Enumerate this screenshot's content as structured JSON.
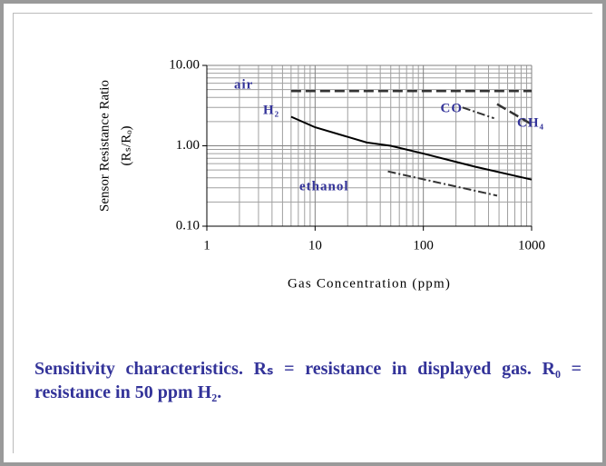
{
  "chart_data": {
    "type": "line",
    "xlabel": "Gas Concentration (ppm)",
    "ylabel": [
      "Sensor Resistance Ratio",
      "(Rₛ/Rₒ)"
    ],
    "log_x": true,
    "log_y": true,
    "grid": true,
    "xlim": [
      1,
      1000
    ],
    "xticks": [
      1,
      10,
      100,
      1000
    ],
    "ylim": [
      0.1,
      10
    ],
    "yticks": [
      {
        "value": 0.1,
        "label": "0.10"
      },
      {
        "value": 1,
        "label": "1.00"
      },
      {
        "value": 10,
        "label": "10.00"
      }
    ],
    "series": [
      {
        "name": "air",
        "color": "#333333",
        "style": "dashed",
        "x": [
          6,
          1000
        ],
        "values": [
          4.8,
          4.8
        ]
      },
      {
        "name": "H₂",
        "color": "#000000",
        "style": "solid",
        "x": [
          6,
          10,
          30,
          50,
          100,
          300,
          1000
        ],
        "values": [
          2.3,
          1.7,
          1.1,
          1.0,
          0.8,
          0.55,
          0.38
        ]
      },
      {
        "name": "CO",
        "color": "#333333",
        "style": "dashdot",
        "x": [
          230,
          450
        ],
        "values": [
          3.0,
          2.2
        ]
      },
      {
        "name": "CH₄",
        "color": "#333333",
        "style": "dashed",
        "x": [
          480,
          1000
        ],
        "values": [
          3.3,
          1.85
        ]
      },
      {
        "name": "ethanol",
        "color": "#333333",
        "style": "dashdot",
        "x": [
          47,
          480
        ],
        "values": [
          0.48,
          0.24
        ]
      }
    ]
  },
  "caption": "Sensitivity characteristics. Rₛ = resistance in displayed gas. R₀ = resistance in 50 ppm H₂."
}
